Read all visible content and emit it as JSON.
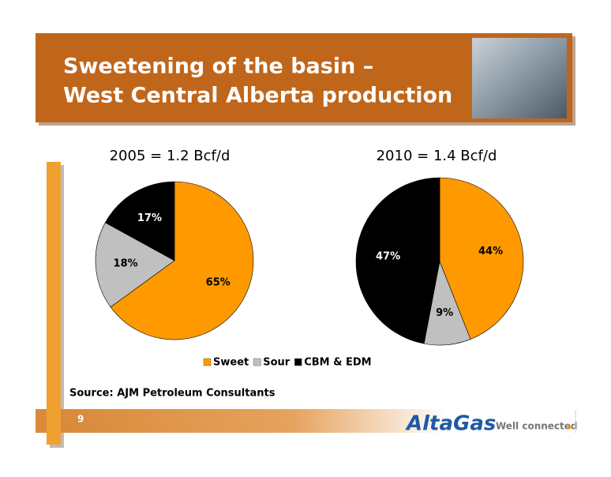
{
  "header": {
    "title": [
      "Sweetening of the basin –",
      "West Central Alberta production"
    ]
  },
  "chart_data": [
    {
      "type": "pie",
      "title": "2005 = 1.2 Bcf/d",
      "categories": [
        "Sweet",
        "Sour",
        "CBM & EDM"
      ],
      "values": [
        65,
        18,
        17
      ],
      "value_labels": [
        "65%",
        "18%",
        "17%"
      ],
      "colors": [
        "#ff9900",
        "#c0c0c0",
        "#000000"
      ],
      "legend": "bottom"
    },
    {
      "type": "pie",
      "title": "2010 = 1.4 Bcf/d",
      "categories": [
        "Sweet",
        "Sour",
        "CBM & EDM"
      ],
      "values": [
        44,
        9,
        47
      ],
      "value_labels": [
        "44%",
        "9%",
        "47%"
      ],
      "colors": [
        "#ff9900",
        "#c0c0c0",
        "#000000"
      ]
    }
  ],
  "source": "Source: AJM Petroleum Consultants",
  "page_number": "9",
  "logo": {
    "name": "AltaGas",
    "tagline": "Well connected"
  }
}
